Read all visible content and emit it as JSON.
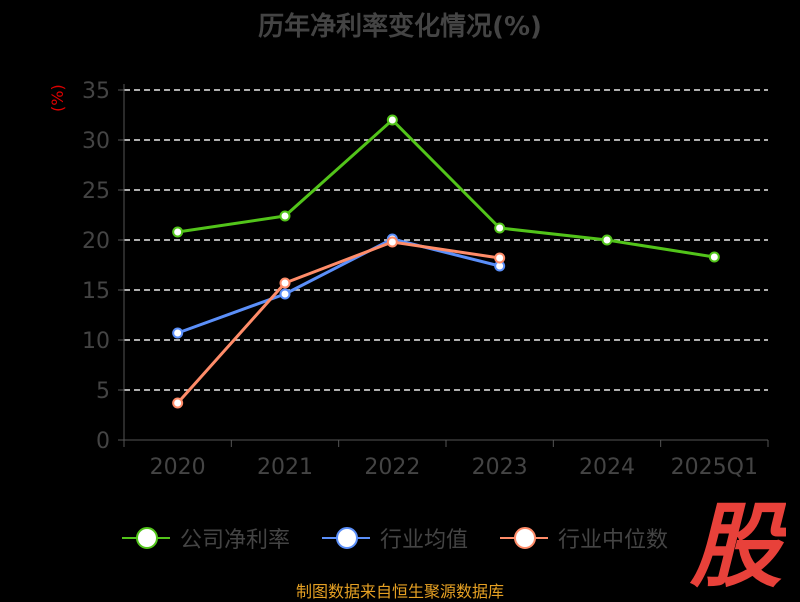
{
  "chart_data": {
    "type": "line",
    "title": "历年净利率变化情况(%)",
    "ylabel": "(%)",
    "categories": [
      "2020",
      "2021",
      "2022",
      "2023",
      "2024",
      "2025Q1"
    ],
    "ylim": [
      0,
      35
    ],
    "yticks": [
      "0",
      "5",
      "10",
      "15",
      "20",
      "25",
      "30",
      "35"
    ],
    "grid": true,
    "legend_position": "bottom",
    "series": [
      {
        "name": "公司净利率",
        "color": "#52c41a",
        "values": [
          20.8,
          22.4,
          32.0,
          21.2,
          20.0,
          18.3
        ]
      },
      {
        "name": "行业均值",
        "color": "#5b8ff9",
        "values": [
          10.7,
          14.6,
          20.1,
          17.4,
          null,
          null
        ]
      },
      {
        "name": "行业中位数",
        "color": "#ff8c69",
        "values": [
          3.7,
          15.7,
          19.8,
          18.2,
          null,
          null
        ]
      }
    ]
  },
  "watermark": {
    "text": "股",
    "color": "#e8413a"
  },
  "source": "制图数据来自恒生聚源数据库"
}
